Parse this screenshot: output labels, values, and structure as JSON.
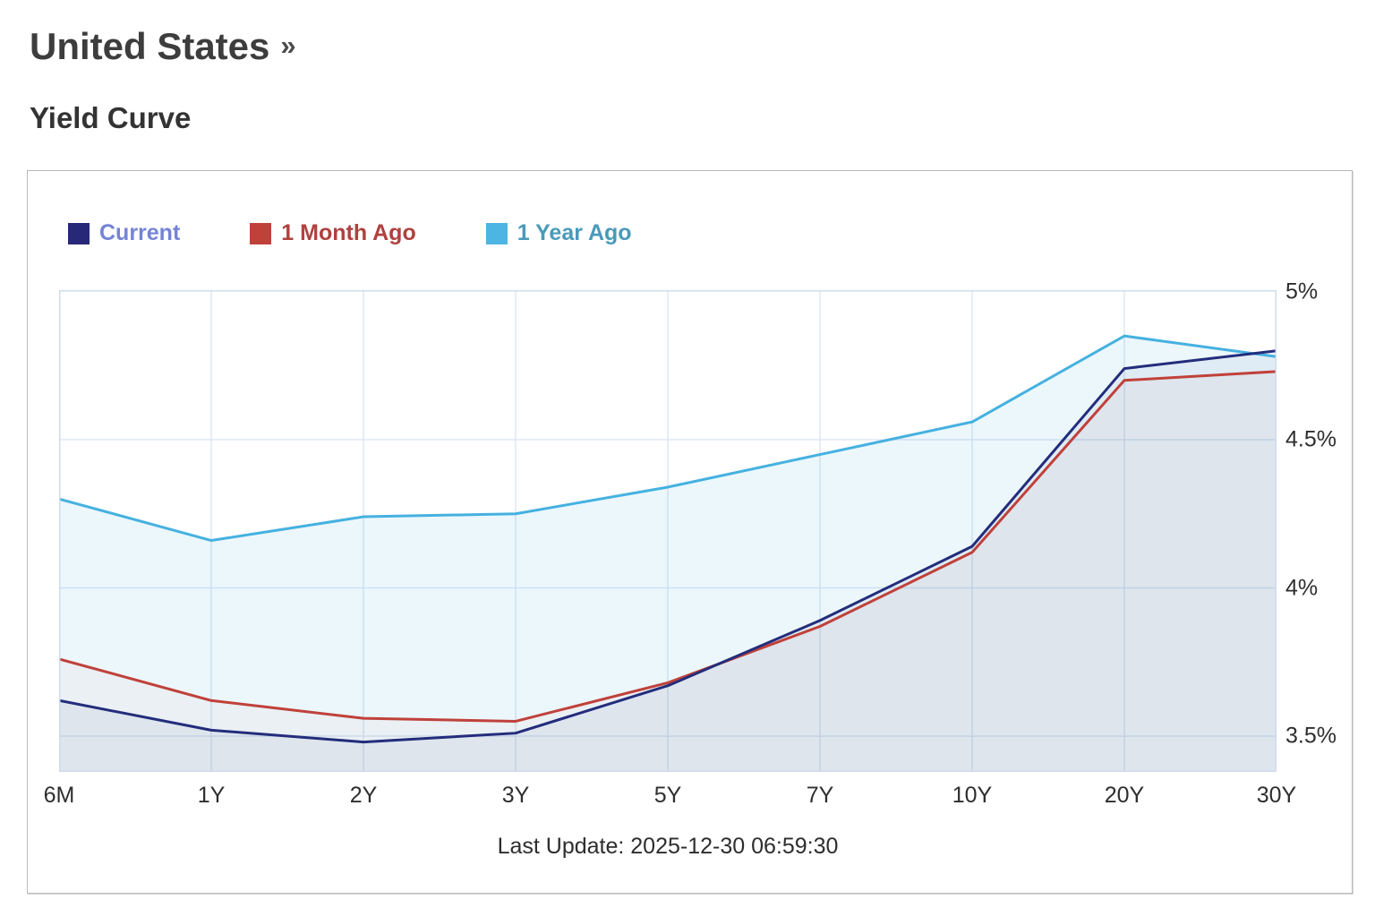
{
  "header": {
    "title": "United States",
    "chevron": "»",
    "subtitle": "Yield Curve"
  },
  "legend": {
    "items": [
      {
        "label": "Current",
        "swatch_color": "#282878",
        "text_color": "#7583d6"
      },
      {
        "label": "1 Month Ago",
        "swatch_color": "#c0413a",
        "text_color": "#ae423e"
      },
      {
        "label": "1 Year Ago",
        "swatch_color": "#4cb5e3",
        "text_color": "#4a9ab9"
      }
    ]
  },
  "chart_data": {
    "type": "line",
    "title": "Yield Curve",
    "categories": [
      "6M",
      "1Y",
      "2Y",
      "3Y",
      "5Y",
      "7Y",
      "10Y",
      "20Y",
      "30Y"
    ],
    "series": [
      {
        "name": "Current",
        "color": "#232d7c",
        "fill": "rgba(40,60,140,0.06)",
        "values": [
          3.62,
          3.52,
          3.48,
          3.51,
          3.67,
          3.89,
          4.14,
          4.74,
          4.8
        ]
      },
      {
        "name": "1 Month Ago",
        "color": "#c0413a",
        "fill": "rgba(192,65,58,0.04)",
        "values": [
          3.76,
          3.62,
          3.56,
          3.55,
          3.68,
          3.87,
          4.12,
          4.7,
          4.73
        ]
      },
      {
        "name": "1 Year Ago",
        "color": "#45b1e0",
        "fill": "rgba(69,177,224,0.10)",
        "values": [
          4.3,
          4.16,
          4.24,
          4.25,
          4.34,
          4.45,
          4.56,
          4.85,
          4.78
        ]
      }
    ],
    "y_ticks": [
      {
        "label": "5%",
        "value": 5.0
      },
      {
        "label": "4.5%",
        "value": 4.5
      },
      {
        "label": "4%",
        "value": 4.0
      },
      {
        "label": "3.5%",
        "value": 3.5
      }
    ],
    "ylim": [
      3.37,
      5.0
    ],
    "unit": "%",
    "grid": true,
    "grid_color": "#dde7f5",
    "plot_border_color": "#cfdcee",
    "legend_position": "top-left"
  },
  "footer": {
    "last_update": "Last Update: 2025-12-30 06:59:30"
  }
}
